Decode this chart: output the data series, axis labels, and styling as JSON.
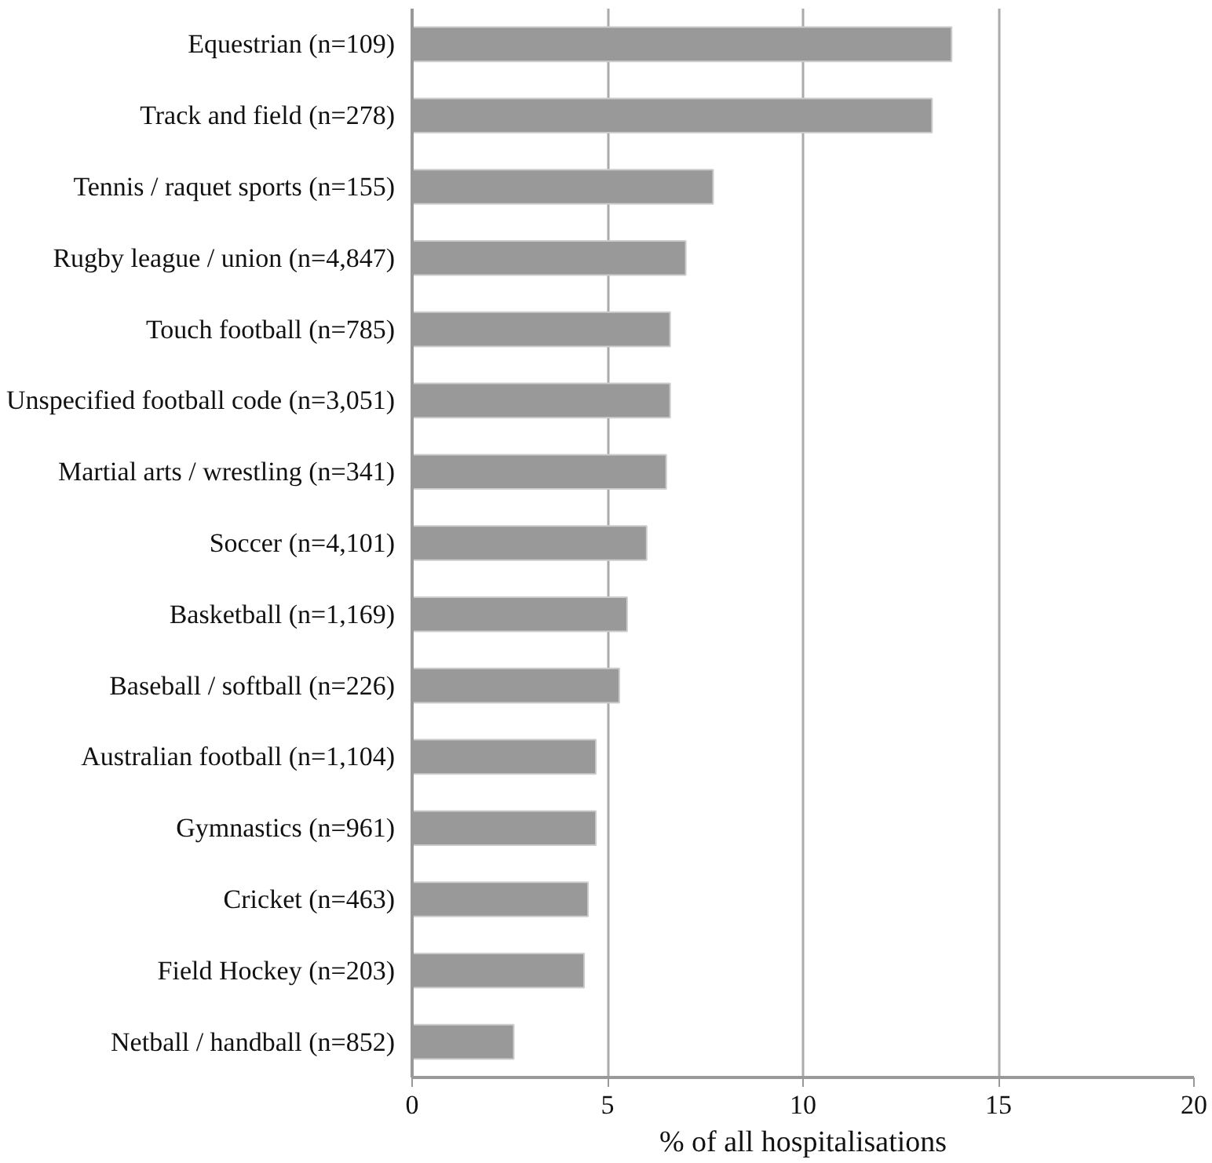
{
  "chart_data": {
    "type": "bar",
    "orientation": "horizontal",
    "xlabel": "% of all hospitalisations",
    "categories": [
      "Equestrian (n=109)",
      "Track and field (n=278)",
      "Tennis / raquet sports (n=155)",
      "Rugby league / union (n=4,847)",
      "Touch football (n=785)",
      "Unspecified football code (n=3,051)",
      "Martial arts / wrestling (n=341)",
      "Soccer (n=4,101)",
      "Basketball (n=1,169)",
      "Baseball / softball (n=226)",
      "Australian football (n=1,104)",
      "Gymnastics (n=961)",
      "Cricket (n=463)",
      "Field Hockey (n=203)",
      "Netball / handball (n=852)"
    ],
    "values": [
      13.8,
      13.3,
      7.7,
      7.0,
      6.6,
      6.6,
      6.5,
      6.0,
      5.5,
      5.3,
      4.7,
      4.7,
      4.5,
      4.4,
      2.6
    ],
    "color": "#999999",
    "xlim": [
      0,
      20
    ],
    "xticks": [
      0,
      5,
      10,
      15,
      20
    ],
    "grid": "x"
  }
}
